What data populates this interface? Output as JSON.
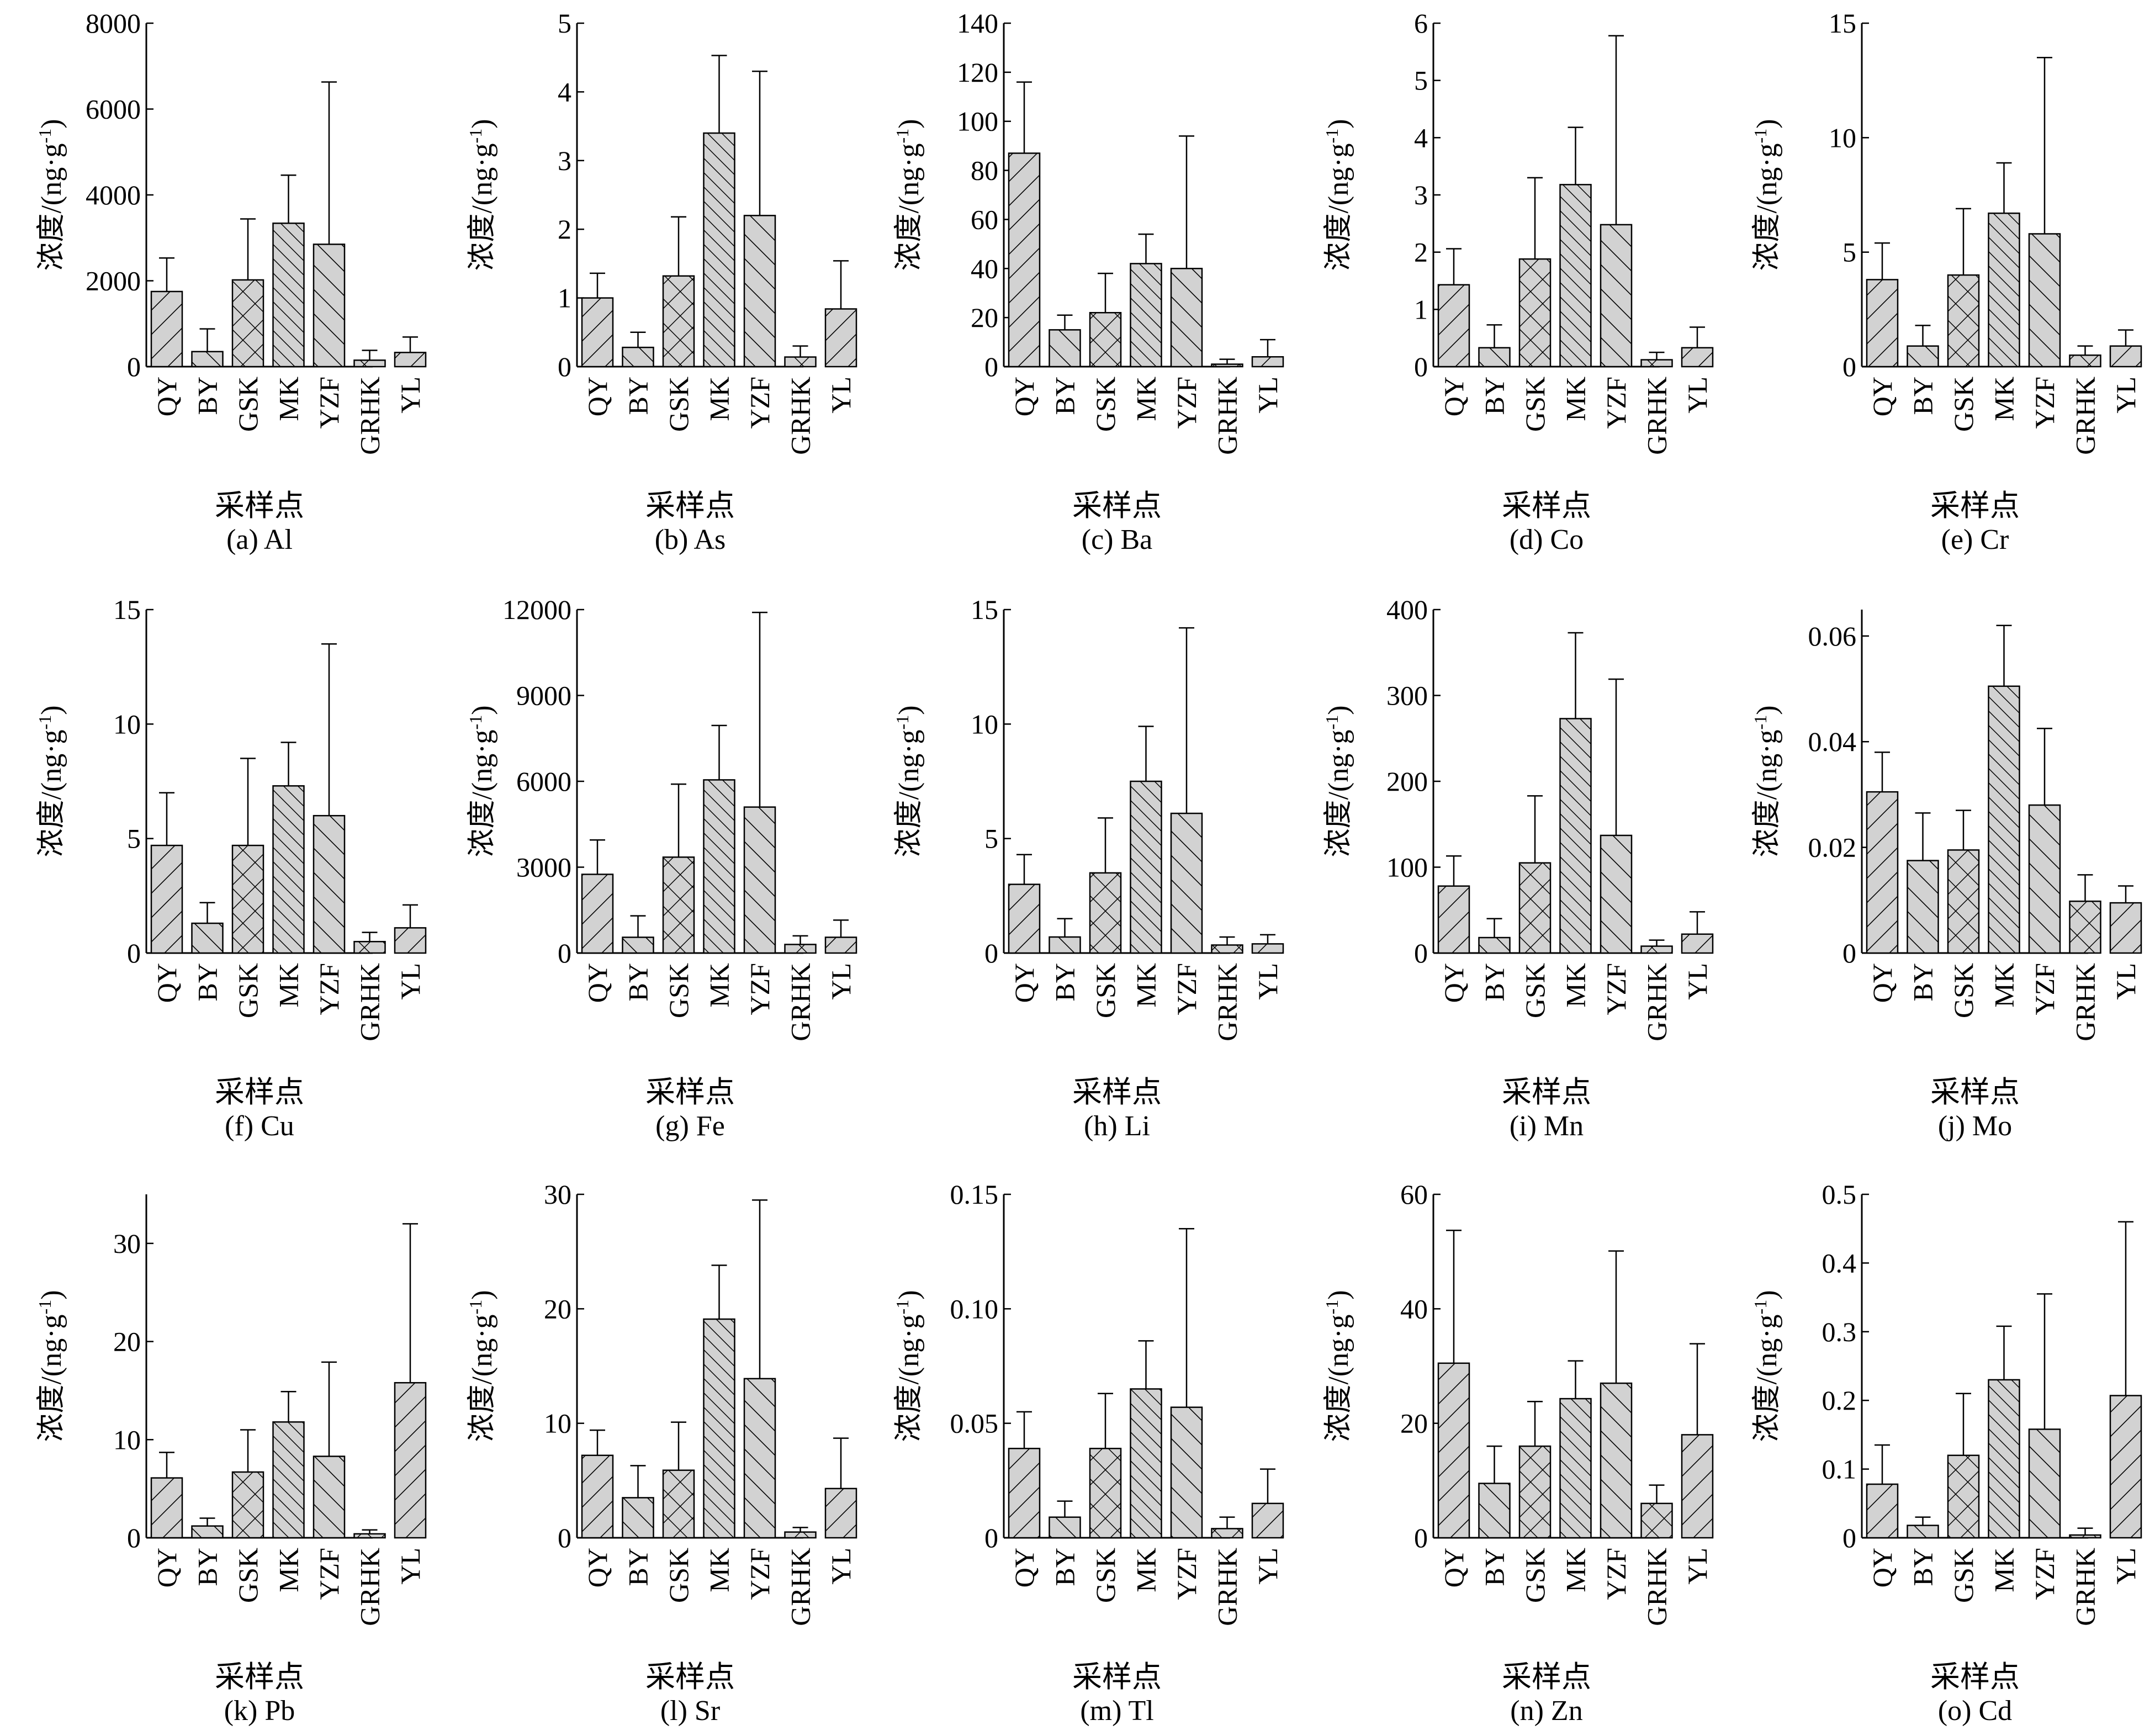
{
  "shared": {
    "categories": [
      "QY",
      "BY",
      "GSK",
      "MK",
      "YZF",
      "GRHK",
      "YL"
    ],
    "ylabel_main": "浓度/(ng·g",
    "ylabel_sup": "-1",
    "ylabel_close": ")",
    "xlabel": "采样点",
    "colors": {
      "bar_fill": "#d2d2d2",
      "stroke": "#000000"
    },
    "hatch_styles": [
      "diag-rising",
      "diag-falling",
      "cross-hatch",
      "diag-falling-dense",
      "diag-falling",
      "cross-hatch",
      "diag-rising"
    ]
  },
  "chart_data": [
    {
      "type": "bar",
      "caption": "(a) Al",
      "ylim": [
        0,
        8000
      ],
      "ticks": [
        0,
        2000,
        4000,
        6000,
        8000
      ],
      "tick_labels": [
        "0",
        "2000",
        "4000",
        "6000",
        "8000"
      ],
      "values": [
        1750,
        350,
        2020,
        3340,
        2850,
        150,
        330
      ],
      "errors": [
        780,
        530,
        1420,
        1120,
        3780,
        230,
        360
      ]
    },
    {
      "type": "bar",
      "caption": "(b) As",
      "ylim": [
        0,
        5
      ],
      "ticks": [
        0,
        1,
        2,
        3,
        4,
        5
      ],
      "tick_labels": [
        "0",
        "1",
        "2",
        "3",
        "4",
        "5"
      ],
      "values": [
        1.0,
        0.28,
        1.32,
        3.4,
        2.2,
        0.14,
        0.84
      ],
      "errors": [
        0.36,
        0.22,
        0.86,
        1.13,
        2.1,
        0.16,
        0.7
      ]
    },
    {
      "type": "bar",
      "caption": "(c) Ba",
      "ylim": [
        0,
        140
      ],
      "ticks": [
        0,
        20,
        40,
        60,
        80,
        100,
        120,
        140
      ],
      "tick_labels": [
        "0",
        "20",
        "40",
        "60",
        "80",
        "100",
        "120",
        "140"
      ],
      "values": [
        87,
        15,
        22,
        42,
        40,
        1,
        4
      ],
      "errors": [
        29,
        6,
        16,
        12,
        54,
        2,
        7
      ]
    },
    {
      "type": "bar",
      "caption": "(d) Co",
      "ylim": [
        0,
        6
      ],
      "ticks": [
        0,
        1,
        2,
        3,
        4,
        5,
        6
      ],
      "tick_labels": [
        "0",
        "1",
        "2",
        "3",
        "4",
        "5",
        "6"
      ],
      "values": [
        1.43,
        0.33,
        1.88,
        3.18,
        2.48,
        0.12,
        0.33
      ],
      "errors": [
        0.63,
        0.4,
        1.42,
        1.0,
        3.3,
        0.13,
        0.36
      ]
    },
    {
      "type": "bar",
      "caption": "(e) Cr",
      "ylim": [
        0,
        15
      ],
      "ticks": [
        0,
        5,
        10,
        15
      ],
      "tick_labels": [
        "0",
        "5",
        "10",
        "15"
      ],
      "values": [
        3.8,
        0.9,
        4.0,
        6.7,
        5.8,
        0.5,
        0.9
      ],
      "errors": [
        1.6,
        0.9,
        2.9,
        2.2,
        7.7,
        0.4,
        0.7
      ]
    },
    {
      "type": "bar",
      "caption": "(f) Cu",
      "ylim": [
        0,
        15
      ],
      "ticks": [
        0,
        5,
        10,
        15
      ],
      "tick_labels": [
        "0",
        "5",
        "10",
        "15"
      ],
      "values": [
        4.7,
        1.3,
        4.7,
        7.3,
        6.0,
        0.5,
        1.1
      ],
      "errors": [
        2.3,
        0.9,
        3.8,
        1.9,
        7.5,
        0.4,
        1.0
      ]
    },
    {
      "type": "bar",
      "caption": "(g) Fe",
      "ylim": [
        0,
        12000
      ],
      "ticks": [
        0,
        3000,
        6000,
        9000,
        12000
      ],
      "tick_labels": [
        "0",
        "3000",
        "6000",
        "9000",
        "12000"
      ],
      "values": [
        2750,
        550,
        3350,
        6050,
        5100,
        300,
        550
      ],
      "errors": [
        1200,
        750,
        2550,
        1900,
        6800,
        300,
        600
      ]
    },
    {
      "type": "bar",
      "caption": "(h) Li",
      "ylim": [
        0,
        15
      ],
      "ticks": [
        0,
        5,
        10,
        15
      ],
      "tick_labels": [
        "0",
        "5",
        "10",
        "15"
      ],
      "values": [
        3.0,
        0.7,
        3.5,
        7.5,
        6.1,
        0.35,
        0.4
      ],
      "errors": [
        1.3,
        0.8,
        2.4,
        2.4,
        8.1,
        0.35,
        0.4
      ]
    },
    {
      "type": "bar",
      "caption": "(i) Mn",
      "ylim": [
        0,
        400
      ],
      "ticks": [
        0,
        100,
        200,
        300,
        400
      ],
      "tick_labels": [
        "0",
        "100",
        "200",
        "300",
        "400"
      ],
      "values": [
        78,
        18,
        105,
        273,
        137,
        8,
        22
      ],
      "errors": [
        35,
        22,
        78,
        100,
        182,
        7,
        26
      ]
    },
    {
      "type": "bar",
      "caption": "(j) Mo",
      "ylim": [
        0,
        0.065
      ],
      "ticks": [
        0,
        0.02,
        0.04,
        0.06
      ],
      "tick_labels": [
        "0",
        "0.02",
        "0.04",
        "0.06"
      ],
      "values": [
        0.0305,
        0.0175,
        0.0195,
        0.0505,
        0.028,
        0.0098,
        0.0095
      ],
      "errors": [
        0.0075,
        0.009,
        0.0075,
        0.0115,
        0.0145,
        0.005,
        0.0032
      ]
    },
    {
      "type": "bar",
      "caption": "(k) Pb",
      "ylim": [
        0,
        35
      ],
      "ticks": [
        0,
        10,
        20,
        30
      ],
      "tick_labels": [
        "0",
        "10",
        "20",
        "30"
      ],
      "values": [
        6.1,
        1.2,
        6.7,
        11.8,
        8.3,
        0.4,
        15.8
      ],
      "errors": [
        2.6,
        0.8,
        4.3,
        3.1,
        9.6,
        0.4,
        16.2
      ]
    },
    {
      "type": "bar",
      "caption": "(l) Sr",
      "ylim": [
        0,
        30
      ],
      "ticks": [
        0,
        10,
        20,
        30
      ],
      "tick_labels": [
        "0",
        "10",
        "20",
        "30"
      ],
      "values": [
        7.2,
        3.5,
        5.9,
        19.1,
        13.9,
        0.5,
        4.3
      ],
      "errors": [
        2.2,
        2.8,
        4.2,
        4.7,
        15.6,
        0.4,
        4.4
      ]
    },
    {
      "type": "bar",
      "caption": "(m) Tl",
      "ylim": [
        0,
        0.15
      ],
      "ticks": [
        0,
        0.05,
        0.1,
        0.15
      ],
      "tick_labels": [
        "0",
        "0.05",
        "0.10",
        "0.15"
      ],
      "values": [
        0.039,
        0.009,
        0.039,
        0.065,
        0.057,
        0.004,
        0.015
      ],
      "errors": [
        0.016,
        0.007,
        0.024,
        0.021,
        0.078,
        0.005,
        0.015
      ]
    },
    {
      "type": "bar",
      "caption": "(n) Zn",
      "ylim": [
        0,
        60
      ],
      "ticks": [
        0,
        20,
        40,
        60
      ],
      "tick_labels": [
        "0",
        "20",
        "40",
        "60"
      ],
      "values": [
        30.5,
        9.5,
        16.0,
        24.3,
        27.0,
        6.0,
        18.0
      ],
      "errors": [
        23.2,
        6.5,
        7.8,
        6.6,
        23.1,
        3.2,
        15.9
      ]
    },
    {
      "type": "bar",
      "caption": "(o) Cd",
      "ylim": [
        0,
        0.5
      ],
      "ticks": [
        0,
        0.1,
        0.2,
        0.3,
        0.4,
        0.5
      ],
      "tick_labels": [
        "0",
        "0.1",
        "0.2",
        "0.3",
        "0.4",
        "0.5"
      ],
      "values": [
        0.078,
        0.018,
        0.12,
        0.23,
        0.158,
        0.004,
        0.207
      ],
      "errors": [
        0.057,
        0.012,
        0.09,
        0.078,
        0.197,
        0.01,
        0.253
      ]
    }
  ]
}
